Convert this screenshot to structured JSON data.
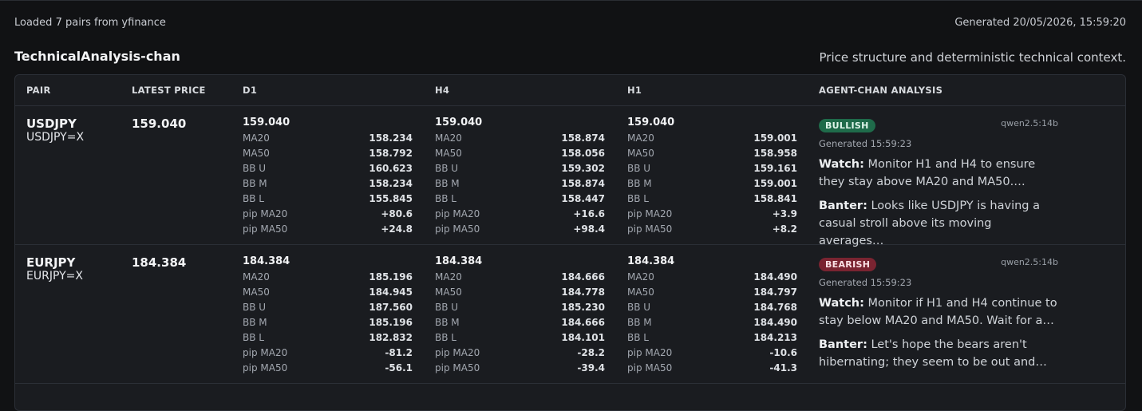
{
  "status_text": "Loaded 7 pairs from yfinance",
  "generated_text": "Generated 20/05/2026, 15:59:20",
  "title": "TechnicalAnalysis-chan",
  "subtitle": "Price structure and deterministic technical context.",
  "headers": {
    "pair": "PAIR",
    "latest": "LATEST PRICE",
    "d1": "D1",
    "h4": "H4",
    "h1": "H1",
    "analysis": "AGENT-CHAN ANALYSIS"
  },
  "metric_labels": {
    "ma20": "MA20",
    "ma50": "MA50",
    "bbu": "BB U",
    "bbm": "BB M",
    "bbl": "BB L",
    "pipma20": "pip MA20",
    "pipma50": "pip MA50"
  },
  "rows": [
    {
      "pair": "USDJPY",
      "ticker": "USDJPY=X",
      "latest": "159.040",
      "d1": {
        "price": "159.040",
        "ma20": "158.234",
        "ma50": "158.792",
        "bbu": "160.623",
        "bbm": "158.234",
        "bbl": "155.845",
        "pipma20": "+80.6",
        "pipma50": "+24.8"
      },
      "h4": {
        "price": "159.040",
        "ma20": "158.874",
        "ma50": "158.056",
        "bbu": "159.302",
        "bbm": "158.874",
        "bbl": "158.447",
        "pipma20": "+16.6",
        "pipma50": "+98.4"
      },
      "h1": {
        "price": "159.040",
        "ma20": "159.001",
        "ma50": "158.958",
        "bbu": "159.161",
        "bbm": "159.001",
        "bbl": "158.841",
        "pipma20": "+3.9",
        "pipma50": "+8.2"
      },
      "analysis": {
        "badge": "BULLISH",
        "badge_color": "#1f6b4a",
        "model": "qwen2.5:14b",
        "generated": "Generated 15:59:23",
        "watch_label": "Watch:",
        "watch": "Monitor H1 and H4 to ensure they stay above MA20 and MA50.…",
        "banter_label": "Banter:",
        "banter": "Looks like USDJPY is having a casual stroll above its moving averages…"
      }
    },
    {
      "pair": "EURJPY",
      "ticker": "EURJPY=X",
      "latest": "184.384",
      "d1": {
        "price": "184.384",
        "ma20": "185.196",
        "ma50": "184.945",
        "bbu": "187.560",
        "bbm": "185.196",
        "bbl": "182.832",
        "pipma20": "-81.2",
        "pipma50": "-56.1"
      },
      "h4": {
        "price": "184.384",
        "ma20": "184.666",
        "ma50": "184.778",
        "bbu": "185.230",
        "bbm": "184.666",
        "bbl": "184.101",
        "pipma20": "-28.2",
        "pipma50": "-39.4"
      },
      "h1": {
        "price": "184.384",
        "ma20": "184.490",
        "ma50": "184.797",
        "bbu": "184.768",
        "bbm": "184.490",
        "bbl": "184.213",
        "pipma20": "-10.6",
        "pipma50": "-41.3"
      },
      "analysis": {
        "badge": "BEARISH",
        "badge_color": "#7a2431",
        "model": "qwen2.5:14b",
        "generated": "Generated 15:59:23",
        "watch_label": "Watch:",
        "watch": "Monitor if H1 and H4 continue to stay below MA20 and MA50. Wait for a…",
        "banter_label": "Banter:",
        "banter": "Let's hope the bears aren't hibernating; they seem to be out and…"
      }
    }
  ]
}
